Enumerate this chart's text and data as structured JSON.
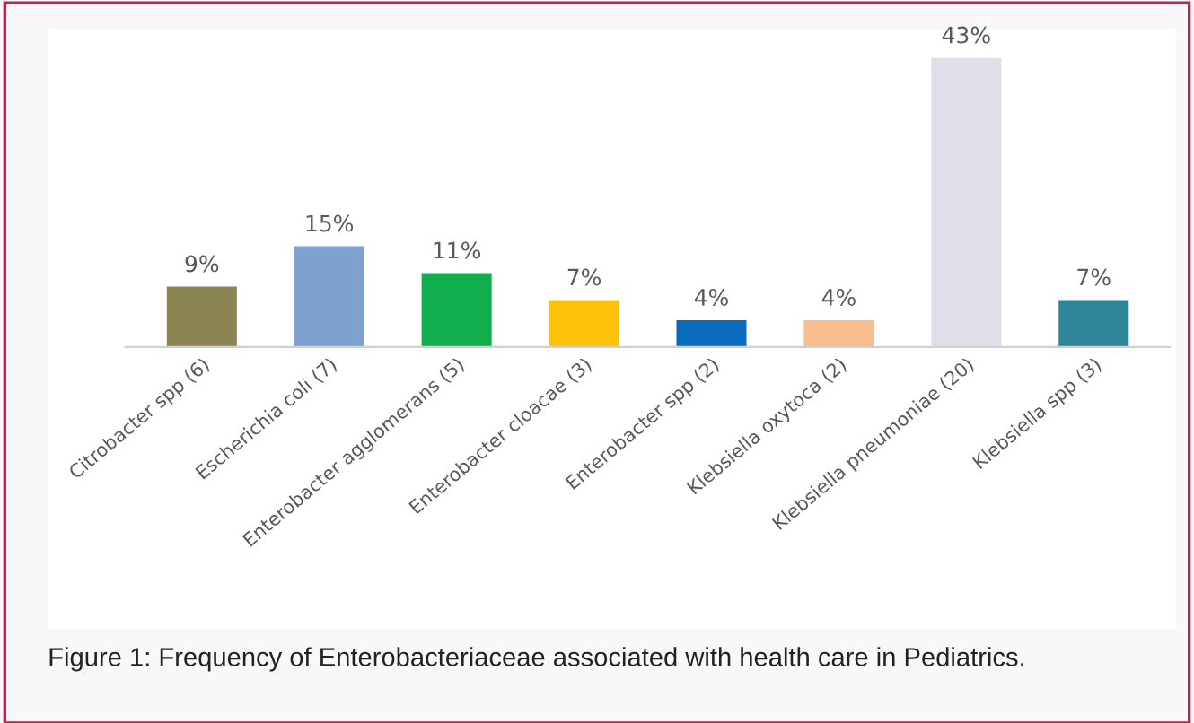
{
  "chart_data": {
    "type": "bar",
    "categories": [
      "Citrobacter spp (6)",
      "Escherichia coli (7)",
      "Enterobacter agglomerans (5)",
      "Enterobacter cloacae (3)",
      "Enterobacter spp (2)",
      "Klebsiella oxytoca (2)",
      "Klebsiella pneumoniae (20)",
      "Klebsiella spp (3)"
    ],
    "values": [
      9,
      15,
      11,
      7,
      4,
      4,
      43,
      7
    ],
    "colors": [
      "#8b8452",
      "#7ea1cf",
      "#12ad4c",
      "#fcc20a",
      "#0b6cbf",
      "#f7bf90",
      "#e2dee9",
      "#2d8597"
    ],
    "value_labels": [
      "9%",
      "15%",
      "11%",
      "7%",
      "4%",
      "4%",
      "43%",
      "7%"
    ],
    "annotations": [
      "Figure 1: Frequency of Enterobacteriaceae associated with health care in Pediatrics."
    ],
    "tick_labels": "x",
    "grid": false,
    "legend": false
  }
}
